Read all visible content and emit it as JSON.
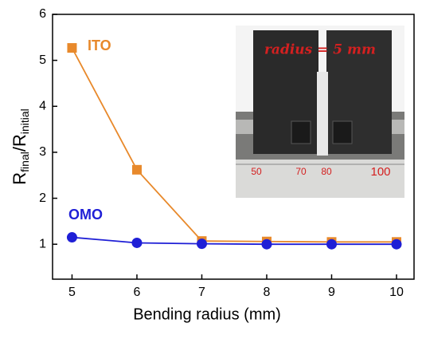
{
  "chart_data": {
    "type": "line",
    "ylabel_parts": [
      "R",
      "final",
      "/R",
      "initial"
    ],
    "xlabel": "Bending radius (mm)",
    "x": [
      5,
      6,
      7,
      8,
      9,
      10
    ],
    "series": [
      {
        "name": "ITO",
        "color": "#e8892b",
        "marker": "square",
        "values": [
          5.27,
          2.62,
          1.07,
          1.06,
          1.05,
          1.05
        ]
      },
      {
        "name": "OMO",
        "color": "#1f1fd6",
        "marker": "circle",
        "values": [
          1.15,
          1.03,
          1.01,
          1.0,
          1.0,
          1.0
        ]
      }
    ],
    "xlim": [
      4.7,
      10.27
    ],
    "xticks": [
      5,
      6,
      7,
      8,
      9,
      10
    ],
    "ylim": [
      0.24,
      6
    ],
    "yticks": [
      1,
      2,
      3,
      4,
      5,
      6
    ],
    "inset": {
      "label": "radius = 5 mm",
      "ruler_labels": [
        "50",
        "70",
        "80",
        "100"
      ]
    }
  }
}
